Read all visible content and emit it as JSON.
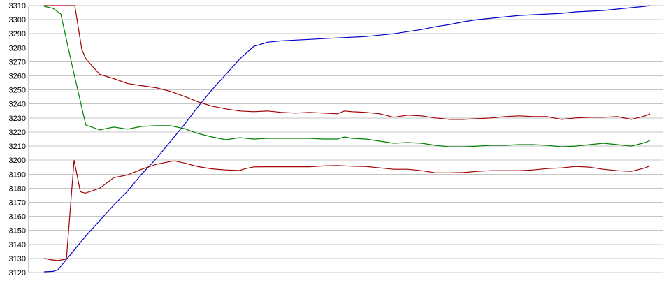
{
  "chart_data": {
    "type": "line",
    "title": "",
    "xlabel": "",
    "ylabel": "",
    "legend": "none",
    "grid": "horizontal",
    "x_axis": {
      "labels_visible": false
    },
    "y_axis": {
      "min": 3120,
      "max": 3310,
      "tick_step": 10
    },
    "y_ticks": [
      3310,
      3300,
      3290,
      3280,
      3270,
      3260,
      3250,
      3240,
      3230,
      3220,
      3210,
      3200,
      3190,
      3180,
      3170,
      3160,
      3150,
      3140,
      3130,
      3120
    ],
    "colors": {
      "background": "#ffffff",
      "gridline": "#c6c6c6",
      "axis": "#909090",
      "tick_text": "#000000"
    },
    "series": [
      {
        "name": "blue-line",
        "color": "#0000cc",
        "points": [
          [
            0,
            3120.5
          ],
          [
            1.5,
            3120.8
          ],
          [
            2.3,
            3122
          ],
          [
            4.6,
            3134
          ],
          [
            6.9,
            3146
          ],
          [
            9.2,
            3157
          ],
          [
            11.5,
            3168
          ],
          [
            13.8,
            3178
          ],
          [
            16.1,
            3190
          ],
          [
            18.5,
            3201
          ],
          [
            20.8,
            3213
          ],
          [
            23.1,
            3225
          ],
          [
            25.4,
            3238
          ],
          [
            27.7,
            3250
          ],
          [
            30.0,
            3261
          ],
          [
            32.3,
            3272
          ],
          [
            34.6,
            3281
          ],
          [
            36.9,
            3284
          ],
          [
            39.2,
            3285
          ],
          [
            41.5,
            3285.5
          ],
          [
            43.8,
            3286
          ],
          [
            46.1,
            3286.5
          ],
          [
            48.4,
            3287
          ],
          [
            50.8,
            3287.5
          ],
          [
            53.1,
            3288
          ],
          [
            55.4,
            3289
          ],
          [
            57.7,
            3290
          ],
          [
            60.0,
            3291.5
          ],
          [
            62.3,
            3293
          ],
          [
            64.6,
            3295
          ],
          [
            66.9,
            3296.5
          ],
          [
            69.2,
            3298.5
          ],
          [
            71.5,
            3300
          ],
          [
            73.8,
            3301
          ],
          [
            76.1,
            3302
          ],
          [
            78.4,
            3303
          ],
          [
            80.7,
            3303.5
          ],
          [
            83.0,
            3304
          ],
          [
            85.4,
            3304.5
          ],
          [
            87.7,
            3305.5
          ],
          [
            90.0,
            3306
          ],
          [
            92.3,
            3306.5
          ],
          [
            94.6,
            3307.5
          ],
          [
            96.9,
            3308.5
          ],
          [
            99.2,
            3309.5
          ],
          [
            100,
            3310
          ]
        ]
      },
      {
        "name": "green-line",
        "color": "#008000",
        "points": [
          [
            0,
            3309.5
          ],
          [
            1.5,
            3308
          ],
          [
            2.77,
            3304
          ],
          [
            4.6,
            3268
          ],
          [
            6.9,
            3225
          ],
          [
            9.2,
            3221.5
          ],
          [
            11.5,
            3223.5
          ],
          [
            13.8,
            3222
          ],
          [
            16.1,
            3224
          ],
          [
            18.5,
            3224.5
          ],
          [
            20.8,
            3224.5
          ],
          [
            23.1,
            3222.5
          ],
          [
            25.4,
            3219
          ],
          [
            27.7,
            3216.5
          ],
          [
            30.0,
            3214.5
          ],
          [
            32.3,
            3216
          ],
          [
            34.6,
            3215
          ],
          [
            36.9,
            3215.5
          ],
          [
            39.2,
            3215.5
          ],
          [
            41.5,
            3215.5
          ],
          [
            43.8,
            3215.5
          ],
          [
            46.1,
            3215
          ],
          [
            48.4,
            3215
          ],
          [
            49.6,
            3216.5
          ],
          [
            50.8,
            3215.5
          ],
          [
            53.1,
            3215
          ],
          [
            55.4,
            3213.5
          ],
          [
            57.7,
            3212
          ],
          [
            60.0,
            3212.5
          ],
          [
            62.3,
            3212
          ],
          [
            64.6,
            3210.5
          ],
          [
            66.9,
            3209.5
          ],
          [
            69.2,
            3209.5
          ],
          [
            71.5,
            3210
          ],
          [
            73.8,
            3210.5
          ],
          [
            76.1,
            3210.5
          ],
          [
            78.4,
            3211
          ],
          [
            80.7,
            3211
          ],
          [
            83.0,
            3210.5
          ],
          [
            85.4,
            3209.5
          ],
          [
            87.7,
            3210
          ],
          [
            90.0,
            3211
          ],
          [
            92.3,
            3212
          ],
          [
            94.6,
            3211
          ],
          [
            96.9,
            3210
          ],
          [
            99.2,
            3212.5
          ],
          [
            100,
            3214
          ]
        ]
      },
      {
        "name": "red-upper-line",
        "color": "#a00000",
        "points": [
          [
            0,
            3310
          ],
          [
            4.6,
            3310
          ],
          [
            5.07,
            3310
          ],
          [
            6.23,
            3279
          ],
          [
            6.9,
            3272
          ],
          [
            9.2,
            3261
          ],
          [
            11.5,
            3258
          ],
          [
            13.8,
            3254.5
          ],
          [
            16.1,
            3253
          ],
          [
            18.5,
            3251.5
          ],
          [
            20.8,
            3249
          ],
          [
            23.1,
            3245.5
          ],
          [
            25.4,
            3241.5
          ],
          [
            27.7,
            3238.5
          ],
          [
            30.0,
            3236.5
          ],
          [
            32.3,
            3235
          ],
          [
            34.6,
            3234.5
          ],
          [
            36.9,
            3235
          ],
          [
            39.2,
            3234
          ],
          [
            41.5,
            3233.5
          ],
          [
            43.8,
            3234
          ],
          [
            46.1,
            3233.5
          ],
          [
            48.4,
            3233
          ],
          [
            49.6,
            3235
          ],
          [
            50.8,
            3234.5
          ],
          [
            53.1,
            3234
          ],
          [
            55.4,
            3233
          ],
          [
            57.7,
            3230.5
          ],
          [
            60.0,
            3232
          ],
          [
            62.3,
            3231.5
          ],
          [
            64.6,
            3230
          ],
          [
            66.9,
            3229
          ],
          [
            69.2,
            3229
          ],
          [
            71.5,
            3229.5
          ],
          [
            73.8,
            3230
          ],
          [
            76.1,
            3231
          ],
          [
            78.4,
            3231.5
          ],
          [
            80.7,
            3231
          ],
          [
            83.0,
            3231
          ],
          [
            85.4,
            3229
          ],
          [
            87.7,
            3230
          ],
          [
            90.0,
            3230.5
          ],
          [
            92.3,
            3230.5
          ],
          [
            94.6,
            3231
          ],
          [
            96.9,
            3229
          ],
          [
            99.2,
            3231.5
          ],
          [
            100,
            3233
          ]
        ]
      },
      {
        "name": "red-lower-line",
        "color": "#a00000",
        "points": [
          [
            0,
            3130
          ],
          [
            1.2,
            3129
          ],
          [
            2.3,
            3128.5
          ],
          [
            3.69,
            3129.5
          ],
          [
            4.96,
            3200
          ],
          [
            6.0,
            3177.5
          ],
          [
            6.81,
            3176.5
          ],
          [
            9.2,
            3180
          ],
          [
            11.5,
            3187.5
          ],
          [
            13.8,
            3189.5
          ],
          [
            16.1,
            3193.5
          ],
          [
            18.5,
            3197
          ],
          [
            20.8,
            3199
          ],
          [
            21.5,
            3199.5
          ],
          [
            23.1,
            3198
          ],
          [
            25.4,
            3195.4
          ],
          [
            27.7,
            3193.8
          ],
          [
            30.0,
            3193
          ],
          [
            32.3,
            3192.6
          ],
          [
            33.1,
            3193.8
          ],
          [
            34.6,
            3195.2
          ],
          [
            36.9,
            3195.3
          ],
          [
            39.2,
            3195.3
          ],
          [
            41.5,
            3195.3
          ],
          [
            43.8,
            3195.3
          ],
          [
            46.1,
            3195.9
          ],
          [
            48.4,
            3196.2
          ],
          [
            50.8,
            3195.7
          ],
          [
            53.1,
            3195.5
          ],
          [
            55.4,
            3194.5
          ],
          [
            57.7,
            3193.5
          ],
          [
            60.0,
            3193.5
          ],
          [
            62.3,
            3192.5
          ],
          [
            64.6,
            3191
          ],
          [
            66.9,
            3191
          ],
          [
            69.2,
            3191.2
          ],
          [
            71.5,
            3192
          ],
          [
            73.8,
            3192.5
          ],
          [
            76.1,
            3192.5
          ],
          [
            78.4,
            3192.5
          ],
          [
            80.7,
            3193
          ],
          [
            83.0,
            3194
          ],
          [
            85.4,
            3194.5
          ],
          [
            87.7,
            3195.5
          ],
          [
            90.0,
            3195
          ],
          [
            92.3,
            3193.5
          ],
          [
            94.6,
            3192.5
          ],
          [
            96.9,
            3192
          ],
          [
            99.2,
            3194.5
          ],
          [
            100,
            3196
          ]
        ]
      }
    ]
  }
}
